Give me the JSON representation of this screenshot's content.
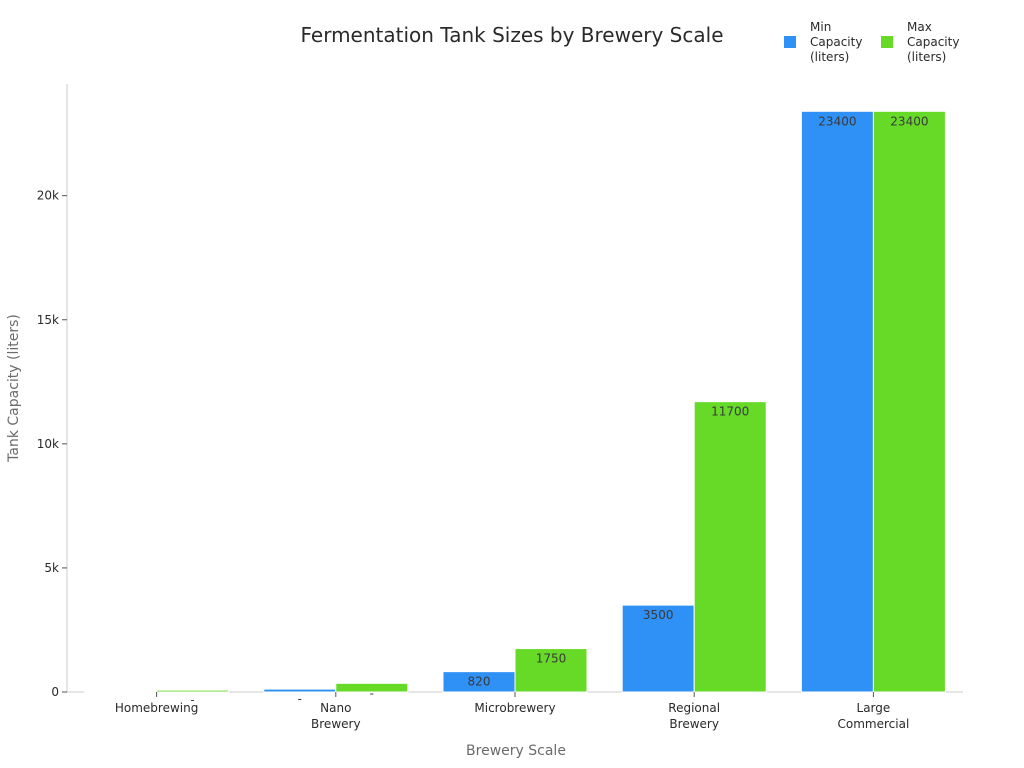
{
  "chart_data": {
    "type": "bar",
    "title": "Fermentation Tank Sizes by Brewery Scale",
    "xlabel": "Brewery Scale",
    "ylabel": "Tank Capacity (liters)",
    "categories": [
      [
        "Homebrewing"
      ],
      [
        "Nano",
        "Brewery"
      ],
      [
        "Microbrewery"
      ],
      [
        "Regional",
        "Brewery"
      ],
      [
        "Large",
        "Commercial"
      ]
    ],
    "ylim": [
      0,
      24500
    ],
    "yticks": [
      0,
      5000,
      10000,
      15000,
      20000
    ],
    "ytick_labels": [
      "0",
      "5k",
      "10k",
      "15k",
      "20k"
    ],
    "series": [
      {
        "name": "Min Capacity (liters)",
        "legend_lines": [
          "Min",
          "Capacity",
          "(liters)"
        ],
        "color": "#2f90f5",
        "values": [
          19,
          117,
          820,
          3500,
          23400
        ],
        "labels": [
          "",
          "-",
          "820",
          "3500",
          "23400"
        ]
      },
      {
        "name": "Max Capacity (liters)",
        "legend_lines": [
          "Max",
          "Capacity",
          "(liters)"
        ],
        "color": "#66da26",
        "values": [
          76,
          350,
          1750,
          11700,
          23400
        ],
        "labels": [
          "-",
          "-",
          "1750",
          "11700",
          "23400"
        ]
      }
    ],
    "legend_position": "top-right",
    "grid": false
  }
}
